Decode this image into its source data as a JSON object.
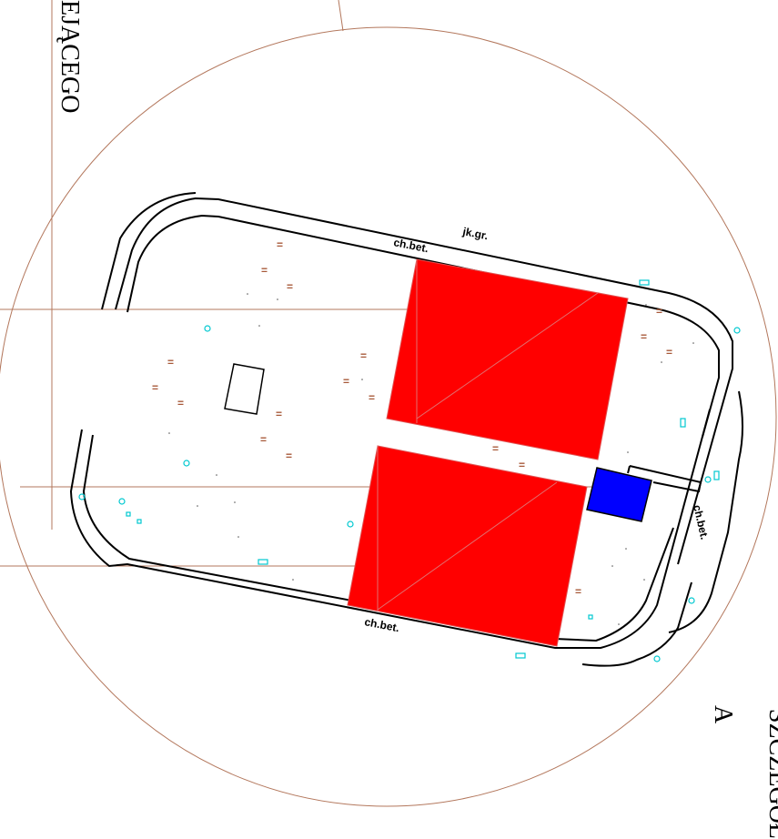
{
  "labels": {
    "left_vertical": "EJĄCEGO",
    "right_vertical": "SZCZEGÓŁ",
    "detail_letter": "A",
    "road_label_top": "jk.gr.",
    "curb_label_top": "ch.bet.",
    "curb_label_bottom": "ch.bet.",
    "curb_label_right": "ch.bet.",
    "grass_mark": "="
  },
  "colors": {
    "circle_outline": "#b3775c",
    "building_fill": "#ff0000",
    "building_outline": "#e05050",
    "structure_fill": "#0000ff",
    "symbol_color": "#00c8d0",
    "road_line": "#000000",
    "mark_color": "#a85a3a"
  },
  "icons": {
    "manhole": "circle-dot-icon",
    "valve": "rectangle-symbol-icon"
  }
}
